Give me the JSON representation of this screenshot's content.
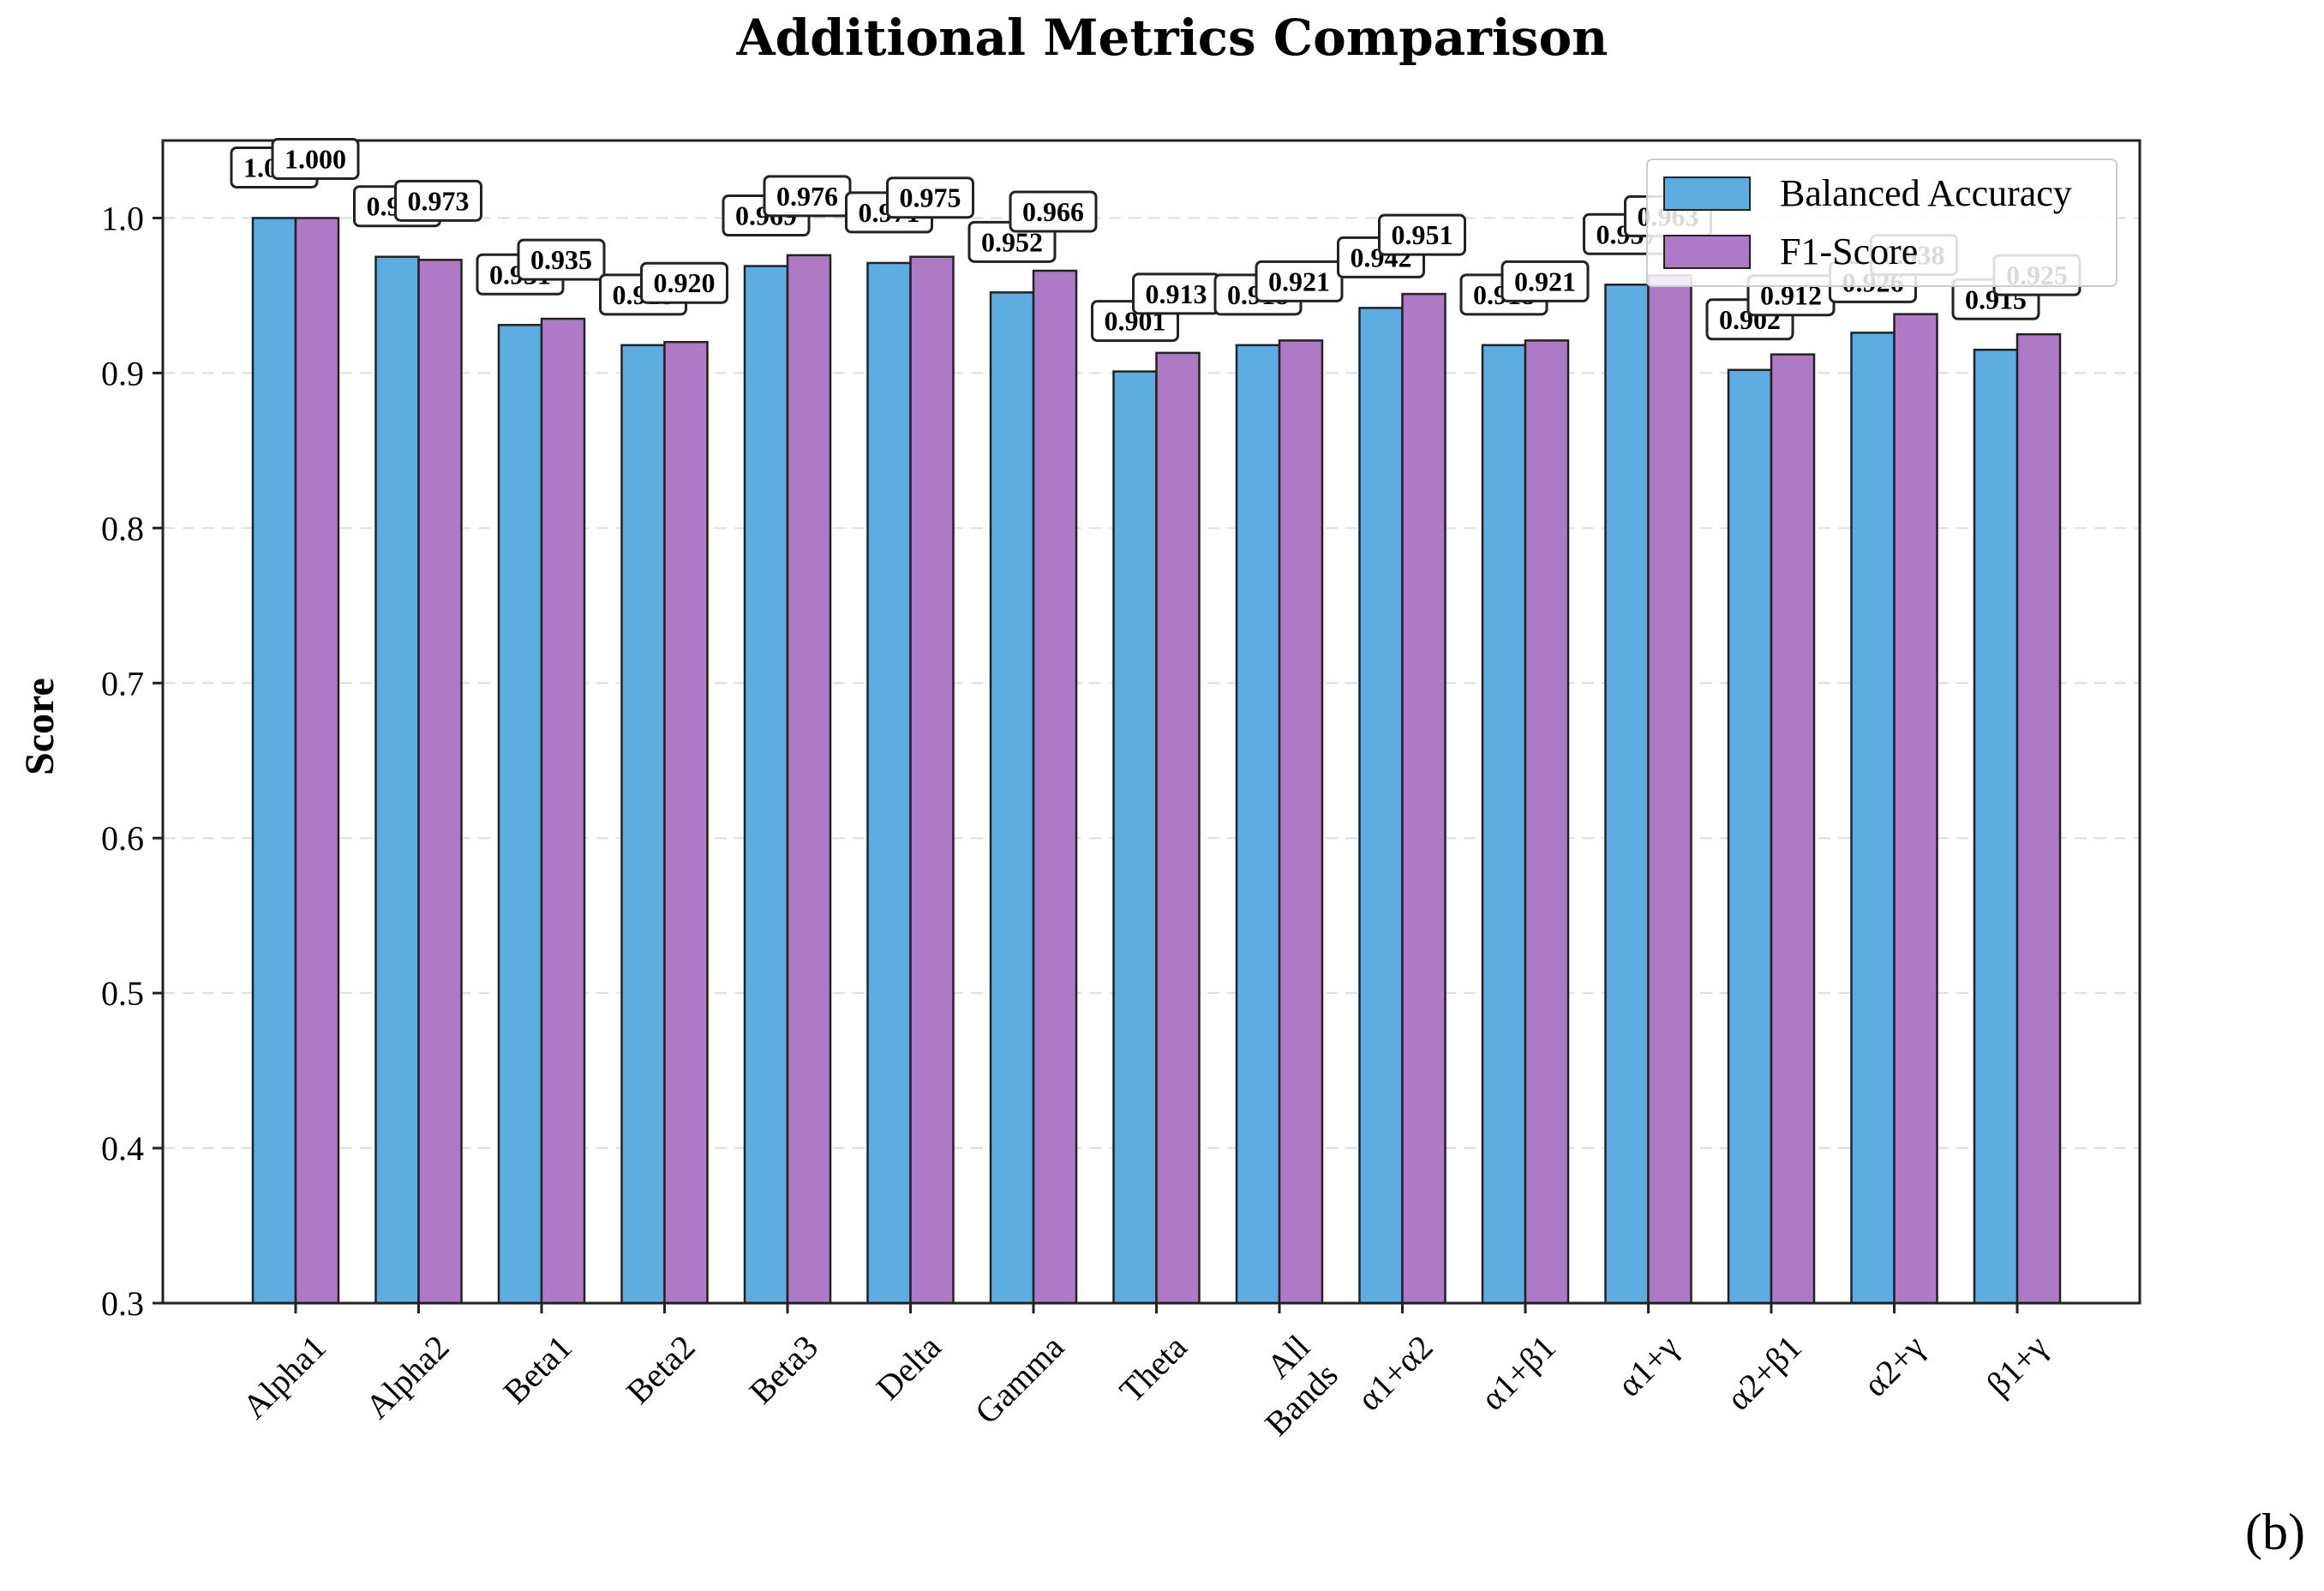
{
  "panel_label": "(b)",
  "chart_data": {
    "type": "bar",
    "title": "Additional Metrics Comparison",
    "xlabel": "",
    "ylabel": "Score",
    "ylim": [
      0.3,
      1.05
    ],
    "yticks": [
      0.3,
      0.4,
      0.5,
      0.6,
      0.7,
      0.8,
      0.9,
      1.0
    ],
    "ytick_labels": [
      "0.3",
      "0.4",
      "0.5",
      "0.6",
      "0.7",
      "0.8",
      "0.9",
      "1.0"
    ],
    "grid": "horizontal dashed",
    "legend_position": "top-right",
    "categories": [
      "Alpha1",
      "Alpha2",
      "Beta1",
      "Beta2",
      "Beta3",
      "Delta",
      "Gamma",
      "Theta",
      "All Bands",
      "α1+α2",
      "α1+β1",
      "α1+γ",
      "α2+β1",
      "α2+γ",
      "β1+γ"
    ],
    "series": [
      {
        "name": "Balanced Accuracy",
        "color": "#5DADE2",
        "values": [
          1.0,
          0.975,
          0.931,
          0.918,
          0.969,
          0.971,
          0.952,
          0.901,
          0.918,
          0.942,
          0.918,
          0.957,
          0.902,
          0.926,
          0.915
        ],
        "labels": [
          "1.000",
          "0.975",
          "0.931",
          "0.918",
          "0.969",
          "0.971",
          "0.952",
          "0.901",
          "0.918",
          "0.942",
          "0.918",
          "0.957",
          "0.902",
          "0.926",
          "0.915"
        ]
      },
      {
        "name": "F1-Score",
        "color": "#AF7AC5",
        "values": [
          1.0,
          0.973,
          0.935,
          0.92,
          0.976,
          0.975,
          0.966,
          0.913,
          0.921,
          0.951,
          0.921,
          0.963,
          0.912,
          0.938,
          0.925
        ],
        "labels": [
          "1.000",
          "0.973",
          "0.935",
          "0.920",
          "0.976",
          "0.975",
          "0.966",
          "0.913",
          "0.921",
          "0.951",
          "0.921",
          "0.963",
          "0.912",
          "0.938",
          "0.925"
        ]
      }
    ]
  }
}
